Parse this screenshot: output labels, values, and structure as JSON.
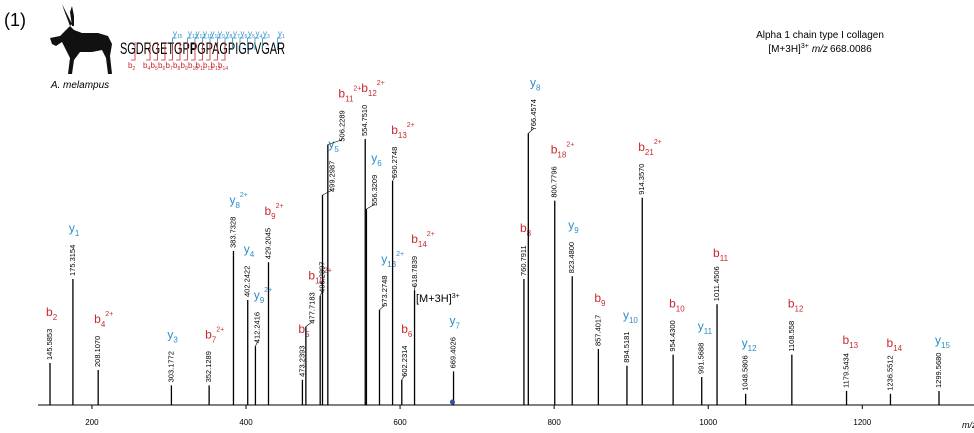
{
  "panel_label": "(1)",
  "species": "A. melampus",
  "sequence": {
    "parts": [
      "SGDRGETGP",
      "P",
      "GPAGPIGPVGAR"
    ],
    "y_ions": {
      "ion": "y",
      "n": [
        "15",
        "13",
        "12",
        "11",
        "10",
        "9",
        "8",
        "7",
        "6",
        "5",
        "4",
        "3",
        "1"
      ]
    },
    "b_ions": {
      "ion": "b",
      "n": [
        "2",
        "4",
        "5",
        "6",
        "7",
        "8",
        "9",
        "10",
        "11",
        "12",
        "13",
        "14"
      ]
    }
  },
  "chart_data": {
    "type": "spectrum",
    "title": "Alpha 1 chain type I collagen",
    "precursor": {
      "label": "[M+3H]",
      "charge": "3+",
      "mz_label": "m/z",
      "mz": 668.0086
    },
    "x": [
      145.5853,
      175.3154,
      208.107,
      303.1772,
      352.1289,
      383.7328,
      402.2422,
      412.2416,
      429.2045,
      473.2393,
      477.7183,
      496.2897,
      499.2987,
      506.2289,
      554.751,
      556.3209,
      573.2748,
      590.2748,
      602.2314,
      618.7839,
      669.4026,
      760.7911,
      766.4574,
      800.7796,
      823.48,
      857.4017,
      894.5181,
      914.357,
      954.43,
      991.5688,
      1011.4506,
      1048.5806,
      1108.558,
      1179.5434,
      1236.5512,
      1299.568
    ],
    "value_labels": [
      "145.5853",
      "175.3154",
      "208.1070",
      "303.1772",
      "352.1289",
      "383.7328",
      "402.2422",
      "412.2416",
      "429.2045",
      "473.2393",
      "477.7183",
      "496.2897",
      "499.2987",
      "506.2289",
      "554.7510",
      "556.3209",
      "573.2748",
      "590.2748",
      "602.2314",
      "618.7839",
      "669.4026",
      "760.7911",
      "766.4574",
      "800.7796",
      "823.4800",
      "857.4017",
      "894.5181",
      "914.3570",
      "954.4300",
      "991.5688",
      "1011.4506",
      "1048.5806",
      "1108.558",
      "1179.5434",
      "1236.5512",
      "1299.5680"
    ],
    "values": [
      15,
      45,
      12.5,
      7,
      7,
      55,
      37.5,
      21,
      51,
      9,
      28,
      39,
      75,
      93,
      95,
      70,
      34,
      80,
      9,
      41,
      12,
      45,
      97,
      73,
      46,
      20,
      14,
      74,
      18,
      10,
      36,
      4,
      18,
      5,
      4,
      5
    ],
    "ions": [
      {
        "ion": "b",
        "n": "2"
      },
      {
        "ion": "y",
        "n": "1"
      },
      {
        "ion": "b",
        "n": "4",
        "z": "2+"
      },
      {
        "ion": "y",
        "n": "3"
      },
      {
        "ion": "b",
        "n": "7",
        "z": "2+"
      },
      {
        "ion": "y",
        "n": "8",
        "z": "2+"
      },
      {
        "ion": "y",
        "n": "4"
      },
      {
        "ion": "y",
        "n": "9",
        "z": "2+"
      },
      {
        "ion": "b",
        "n": "9",
        "z": "2+"
      },
      {
        "ion": "b",
        "n": "5"
      },
      {
        "ion": "b",
        "n": "10",
        "z": "2+"
      },
      null,
      {
        "ion": "y",
        "n": "5"
      },
      {
        "ion": "b",
        "n": "11",
        "z": "2+"
      },
      {
        "ion": "b",
        "n": "12",
        "z": "2+"
      },
      {
        "ion": "y",
        "n": "6"
      },
      {
        "ion": "y",
        "n": "13",
        "z": "2+"
      },
      {
        "ion": "b",
        "n": "13",
        "z": "2+"
      },
      {
        "ion": "b",
        "n": "6"
      },
      {
        "ion": "b",
        "n": "14",
        "z": "2+"
      },
      {
        "ion": "y",
        "n": "7"
      },
      {
        "ion": "b",
        "n": "8"
      },
      {
        "ion": "y",
        "n": "8"
      },
      {
        "ion": "b",
        "n": "18",
        "z": "2+"
      },
      {
        "ion": "y",
        "n": "9"
      },
      {
        "ion": "b",
        "n": "9"
      },
      {
        "ion": "y",
        "n": "10"
      },
      {
        "ion": "b",
        "n": "21",
        "z": "2+"
      },
      {
        "ion": "b",
        "n": "10"
      },
      {
        "ion": "y",
        "n": "11"
      },
      {
        "ion": "b",
        "n": "11"
      },
      {
        "ion": "y",
        "n": "12"
      },
      {
        "ion": "b",
        "n": "12"
      },
      {
        "ion": "b",
        "n": "13"
      },
      {
        "ion": "b",
        "n": "14"
      },
      {
        "ion": "y",
        "n": "15"
      }
    ],
    "xlim": [
      130,
      1345
    ],
    "xticks": [
      200,
      400,
      600,
      800,
      1000,
      1200
    ],
    "ylim": [
      0,
      100
    ],
    "xlabel": "m/z",
    "peak_color": "#000000",
    "ion_colors": {
      "b": "#c8282e",
      "y": "#2a8ec8"
    },
    "precursor_color": "#2f4fa0"
  }
}
